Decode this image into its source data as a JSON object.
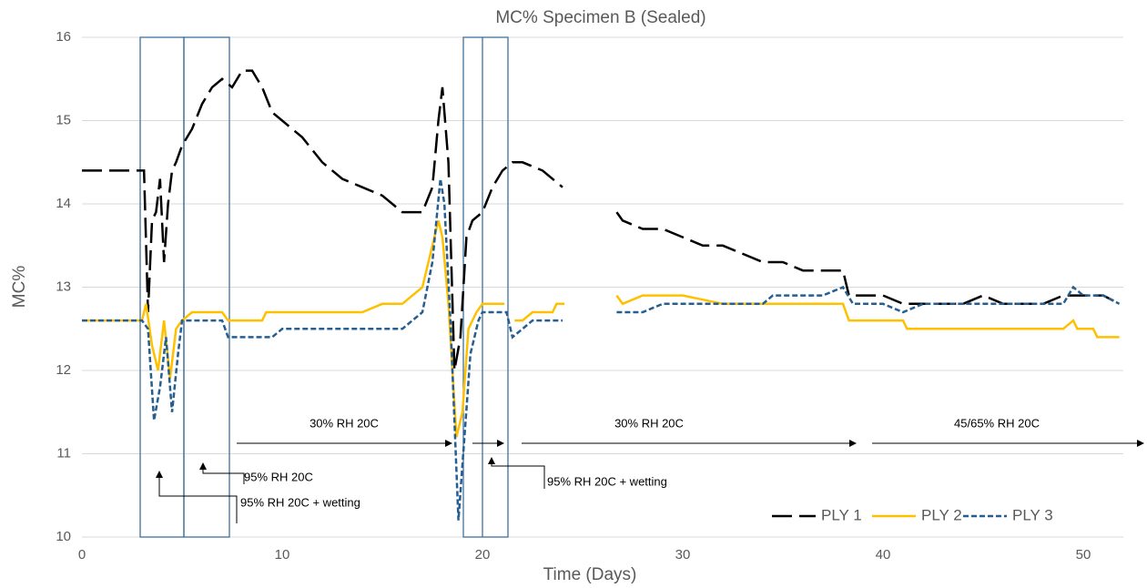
{
  "chart_data": {
    "type": "line",
    "title": "MC% Specimen B (Sealed)",
    "x_label": "Time (Days)",
    "y_label": "MC%",
    "xlim": [
      0,
      52
    ],
    "ylim": [
      10,
      16
    ],
    "xticks": [
      0,
      10,
      20,
      30,
      40,
      50
    ],
    "yticks": [
      10,
      11,
      12,
      13,
      14,
      15,
      16
    ],
    "grid": true,
    "series": [
      {
        "name": "PLY 1",
        "color": "#000000",
        "x": [
          0,
          3,
          3.1,
          3.3,
          3.5,
          3.7,
          3.9,
          4.1,
          4.3,
          4.5,
          4.7,
          5,
          5.5,
          6,
          6.5,
          7,
          7.5,
          8,
          8.5,
          9,
          9.5,
          10,
          11,
          12,
          13,
          14,
          15,
          16,
          17,
          17.5,
          17.8,
          18,
          18.3,
          18.6,
          18.9,
          19.2,
          19.5,
          20,
          20.5,
          21,
          21.5,
          22,
          23,
          24,
          25,
          26.7,
          27,
          28,
          29,
          30,
          31,
          32,
          33,
          34,
          35,
          36,
          37,
          38,
          38.3,
          39,
          40,
          41,
          42,
          43,
          44,
          45,
          46,
          47,
          48,
          49,
          49.5,
          50,
          51,
          51.8
        ],
        "values": [
          14.4,
          14.4,
          14.4,
          12.7,
          13.8,
          13.9,
          14.3,
          13.3,
          14.0,
          14.4,
          14.5,
          14.7,
          14.9,
          15.2,
          15.4,
          15.5,
          15.4,
          15.6,
          15.6,
          15.4,
          15.1,
          15.0,
          14.8,
          14.5,
          14.3,
          14.2,
          14.1,
          13.9,
          13.9,
          14.2,
          15.0,
          15.4,
          14.5,
          12.0,
          12.4,
          13.6,
          13.8,
          13.9,
          14.2,
          14.4,
          14.5,
          14.5,
          14.4,
          14.2,
          null,
          13.9,
          13.8,
          13.7,
          13.7,
          13.6,
          13.5,
          13.5,
          13.4,
          13.3,
          13.3,
          13.2,
          13.2,
          13.2,
          12.9,
          12.9,
          12.9,
          12.8,
          12.8,
          12.8,
          12.8,
          12.9,
          12.8,
          12.8,
          12.8,
          12.9,
          12.9,
          12.9,
          12.9,
          12.8
        ]
      },
      {
        "name": "PLY 2",
        "color": "#FFC000",
        "x": [
          0,
          3,
          3.2,
          3.5,
          3.8,
          4.1,
          4.4,
          4.7,
          5,
          5.5,
          7,
          7.3,
          9,
          9.2,
          13,
          14,
          15,
          16,
          17,
          17.5,
          17.8,
          18,
          18.3,
          18.7,
          19,
          19.3,
          19.7,
          20,
          21.1,
          21.3,
          21.6,
          22,
          22.5,
          23.5,
          23.7,
          24.1,
          25,
          26.7,
          27,
          28,
          30,
          32,
          38,
          38.3,
          41,
          41.2,
          49,
          49.5,
          49.7,
          50.5,
          50.7,
          51.8
        ],
        "values": [
          12.6,
          12.6,
          12.8,
          12.3,
          12.0,
          12.6,
          11.9,
          12.5,
          12.6,
          12.7,
          12.7,
          12.6,
          12.6,
          12.7,
          12.7,
          12.7,
          12.8,
          12.8,
          13.0,
          13.5,
          13.8,
          13.6,
          12.8,
          11.2,
          11.5,
          12.5,
          12.7,
          12.8,
          12.8,
          null,
          12.6,
          12.6,
          12.7,
          12.7,
          12.8,
          12.8,
          null,
          12.9,
          12.8,
          12.9,
          12.9,
          12.8,
          12.8,
          12.6,
          12.6,
          12.5,
          12.5,
          12.6,
          12.5,
          12.5,
          12.4,
          12.4
        ]
      },
      {
        "name": "PLY 3",
        "color": "#255E91",
        "x": [
          0,
          3,
          3.3,
          3.6,
          3.9,
          4.2,
          4.5,
          4.8,
          5,
          7,
          7.3,
          9.5,
          10,
          16,
          16.5,
          17,
          17.5,
          17.9,
          18.1,
          18.4,
          18.8,
          19.1,
          19.4,
          19.8,
          20,
          21.2,
          21.5,
          22,
          22.5,
          24,
          25,
          26.7,
          28,
          29,
          34,
          34.5,
          37,
          38,
          38.5,
          40,
          41,
          42,
          49,
          49.5,
          50,
          51,
          51.8
        ],
        "values": [
          12.6,
          12.6,
          12.5,
          11.4,
          11.8,
          12.4,
          11.5,
          12.2,
          12.6,
          12.6,
          12.4,
          12.4,
          12.5,
          12.5,
          12.6,
          12.7,
          13.3,
          14.3,
          14.0,
          12.6,
          10.2,
          11.2,
          12.2,
          12.6,
          12.7,
          12.7,
          12.4,
          12.5,
          12.6,
          12.6,
          null,
          12.7,
          12.7,
          12.8,
          12.8,
          12.9,
          12.9,
          13.0,
          12.8,
          12.8,
          12.7,
          12.8,
          12.8,
          13.0,
          12.9,
          12.9,
          12.8
        ]
      }
    ],
    "annotations": [
      "30% RH 20C",
      "30% RH 20C",
      "45/65% RH 20C",
      "95% RH 20C",
      "95% RH 20C + wetting",
      "95% RH 20C + wetting"
    ]
  }
}
